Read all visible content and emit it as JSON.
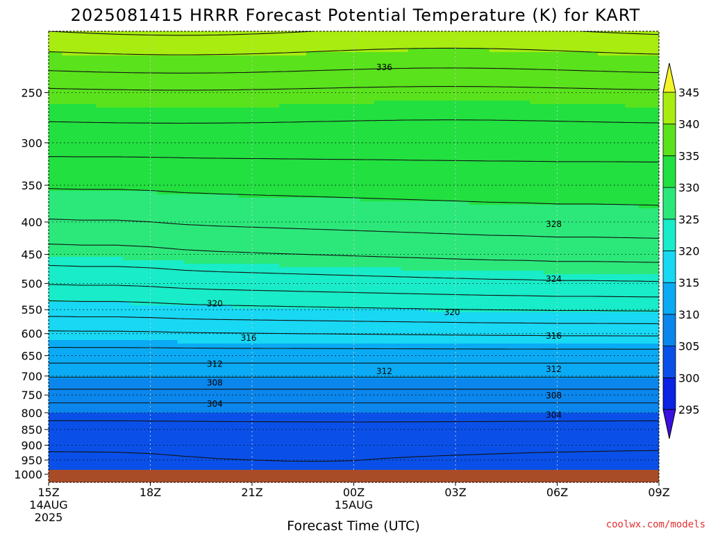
{
  "chart_data": {
    "type": "heatmap",
    "title": "2025081415 HRRR Forecast Potential Temperature (K) for KART",
    "xlabel": "Forecast Time (UTC)",
    "ylabel": "",
    "x_ticks": [
      {
        "hour": 0,
        "lines": [
          "15Z",
          "14AUG",
          "2025"
        ]
      },
      {
        "hour": 3,
        "lines": [
          "18Z"
        ]
      },
      {
        "hour": 6,
        "lines": [
          "21Z"
        ]
      },
      {
        "hour": 9,
        "lines": [
          "00Z",
          "15AUG"
        ]
      },
      {
        "hour": 12,
        "lines": [
          "03Z"
        ]
      },
      {
        "hour": 15,
        "lines": [
          "06Z"
        ]
      },
      {
        "hour": 18,
        "lines": [
          "09Z"
        ]
      }
    ],
    "xlim": [
      "2025-08-14 15Z",
      "2025-08-15 09Z"
    ],
    "y_scale": "log-pressure",
    "y_ticks": [
      250,
      300,
      350,
      400,
      450,
      500,
      550,
      600,
      650,
      700,
      750,
      800,
      850,
      900,
      950,
      1000
    ],
    "ylim": [
      1030,
      200
    ],
    "colorbar": {
      "levels": [
        295,
        300,
        305,
        310,
        315,
        320,
        325,
        330,
        335,
        340,
        345
      ],
      "colors": [
        "#3a10e0",
        "#0a22e2",
        "#0a50e8",
        "#0a86ec",
        "#0aaaf4",
        "#18d8f4",
        "#18ecc8",
        "#2ce87a",
        "#22e040",
        "#5ae21c",
        "#a8ec10",
        "#f4f42a"
      ],
      "extend": "both"
    },
    "surface_color": "#a84c28",
    "contour_interval": 2,
    "contour_labels": [
      {
        "value": "336",
        "hour": 9.9,
        "p": 228
      },
      {
        "value": "328",
        "hour": 14.9,
        "p": 403
      },
      {
        "value": "324",
        "hour": 14.9,
        "p": 492
      },
      {
        "value": "320",
        "hour": 4.9,
        "p": 538
      },
      {
        "value": "320",
        "hour": 11.9,
        "p": 555
      },
      {
        "value": "316",
        "hour": 5.9,
        "p": 610
      },
      {
        "value": "316",
        "hour": 14.9,
        "p": 605
      },
      {
        "value": "312",
        "hour": 4.9,
        "p": 670
      },
      {
        "value": "312",
        "hour": 9.9,
        "p": 688
      },
      {
        "value": "312",
        "hour": 14.9,
        "p": 683
      },
      {
        "value": "308",
        "hour": 4.9,
        "p": 717
      },
      {
        "value": "308",
        "hour": 14.9,
        "p": 752
      },
      {
        "value": "304",
        "hour": 4.9,
        "p": 775
      },
      {
        "value": "304",
        "hour": 14.9,
        "p": 807
      }
    ],
    "grid": true,
    "legend": "right"
  },
  "credit": "coolwx.com/models"
}
